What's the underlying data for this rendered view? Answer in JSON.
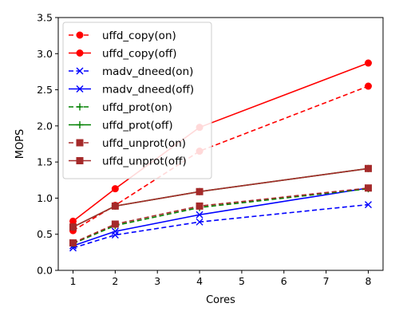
{
  "chart_data": {
    "type": "line",
    "xlabel": "Cores",
    "ylabel": "MOPS",
    "xlim": [
      0.65,
      8.35
    ],
    "ylim": [
      0.0,
      3.5
    ],
    "xticks": [
      1,
      2,
      3,
      4,
      5,
      6,
      7,
      8
    ],
    "xtick_labels": [
      "1",
      "2",
      "3",
      "4",
      "5",
      "6",
      "7",
      "8"
    ],
    "yticks": [
      0.0,
      0.5,
      1.0,
      1.5,
      2.0,
      2.5,
      3.0,
      3.5
    ],
    "ytick_labels": [
      "0.0",
      "0.5",
      "1.0",
      "1.5",
      "2.0",
      "2.5",
      "3.0",
      "3.5"
    ],
    "grid": false,
    "legend_position": "top-left",
    "series": [
      {
        "name": "uffd_copy(on)",
        "color": "#ff0000",
        "linestyle": "dashed",
        "marker": "circle",
        "x": [
          1,
          2,
          4,
          8
        ],
        "y": [
          0.55,
          0.9,
          1.65,
          2.55
        ]
      },
      {
        "name": "uffd_copy(off)",
        "color": "#ff0000",
        "linestyle": "solid",
        "marker": "circle",
        "x": [
          1,
          2,
          4,
          8
        ],
        "y": [
          0.68,
          1.13,
          1.98,
          2.87
        ]
      },
      {
        "name": "madv_dneed(on)",
        "color": "#0000ff",
        "linestyle": "dashed",
        "marker": "x",
        "x": [
          1,
          2,
          4,
          8
        ],
        "y": [
          0.31,
          0.49,
          0.67,
          0.91
        ]
      },
      {
        "name": "madv_dneed(off)",
        "color": "#0000ff",
        "linestyle": "solid",
        "marker": "x",
        "x": [
          1,
          2,
          4,
          8
        ],
        "y": [
          0.34,
          0.54,
          0.77,
          1.14
        ]
      },
      {
        "name": "uffd_prot(on)",
        "color": "#008000",
        "linestyle": "dashed",
        "marker": "plus",
        "x": [
          1,
          2,
          4,
          8
        ],
        "y": [
          0.37,
          0.62,
          0.87,
          1.13
        ]
      },
      {
        "name": "uffd_prot(off)",
        "color": "#008000",
        "linestyle": "solid",
        "marker": "plus",
        "x": [
          1,
          2,
          4,
          8
        ],
        "y": [
          0.6,
          0.89,
          1.09,
          1.41
        ]
      },
      {
        "name": "uffd_unprot(on)",
        "color": "#a52a2a",
        "linestyle": "dashed",
        "marker": "square",
        "x": [
          1,
          2,
          4,
          8
        ],
        "y": [
          0.38,
          0.64,
          0.89,
          1.14
        ]
      },
      {
        "name": "uffd_unprot(off)",
        "color": "#a52a2a",
        "linestyle": "solid",
        "marker": "square",
        "x": [
          1,
          2,
          4,
          8
        ],
        "y": [
          0.6,
          0.89,
          1.09,
          1.41
        ]
      }
    ]
  }
}
